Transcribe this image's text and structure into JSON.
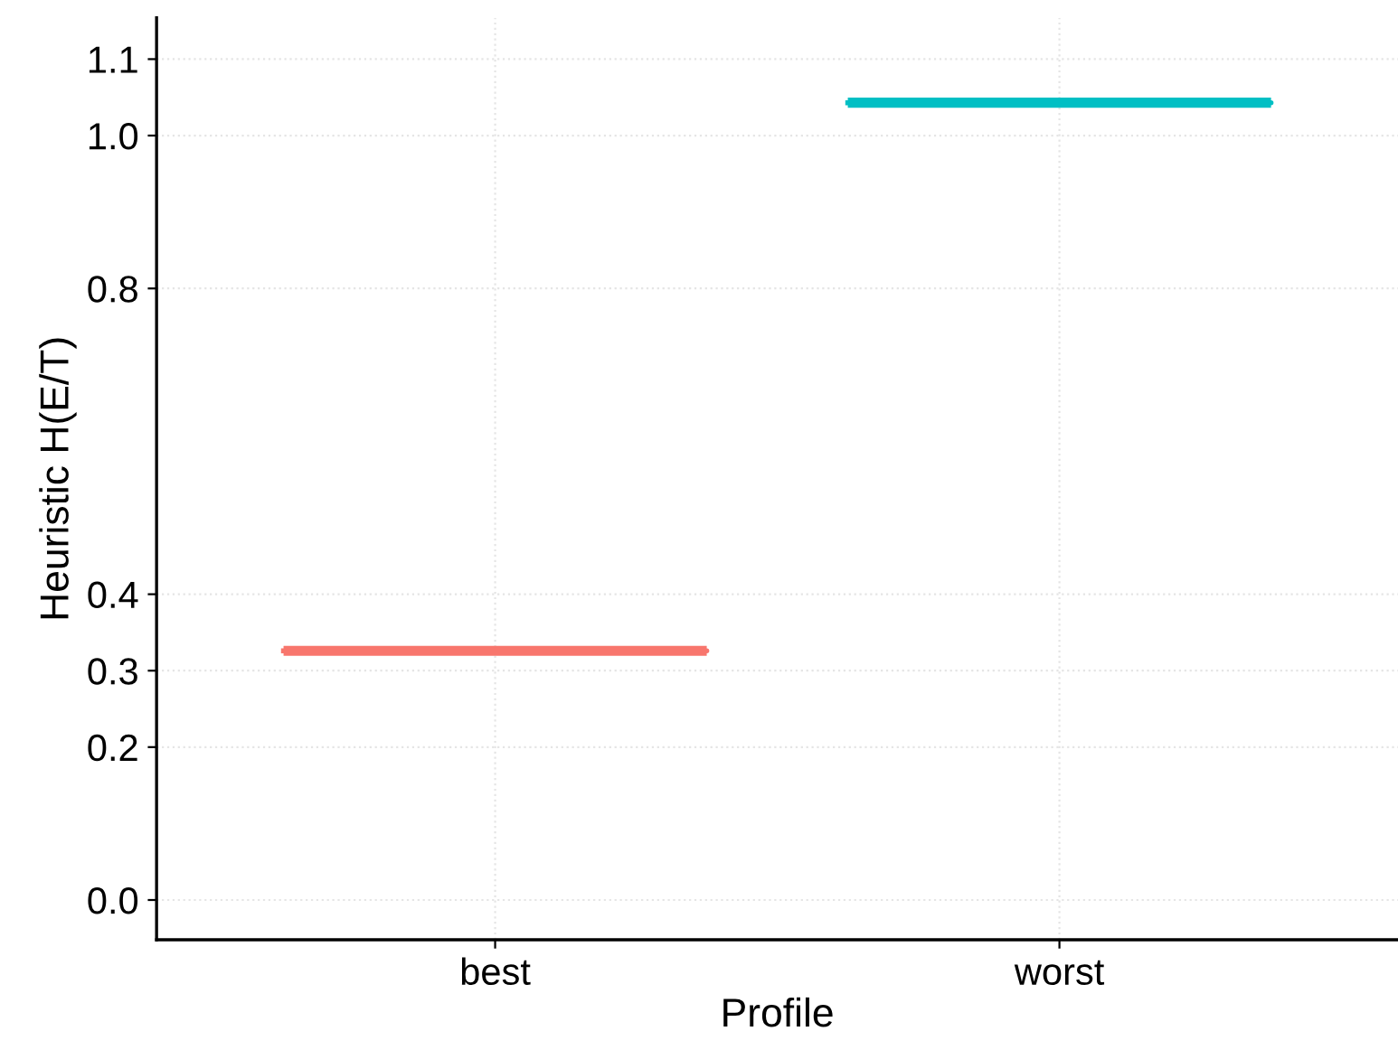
{
  "chart_data": {
    "type": "box",
    "xlabel": "Profile",
    "ylabel": "Heuristic H(E/T)",
    "categories": [
      "best",
      "worst"
    ],
    "boxes": [
      {
        "low": 0.326,
        "q1": 0.326,
        "median": 0.326,
        "q3": 0.326,
        "high": 0.326
      },
      {
        "low": 1.043,
        "q1": 1.043,
        "median": 1.043,
        "q3": 1.043,
        "high": 1.043
      }
    ],
    "colors": [
      "#f8766d",
      "#00bfc4"
    ],
    "ylim": [
      -0.052,
      1.154
    ],
    "yticks": [
      {
        "value": 0,
        "label": "0.0"
      },
      0.2,
      0.3,
      0.4,
      0.8,
      {
        "value": 1,
        "label": "1.0"
      },
      1.1
    ],
    "grid": true
  }
}
